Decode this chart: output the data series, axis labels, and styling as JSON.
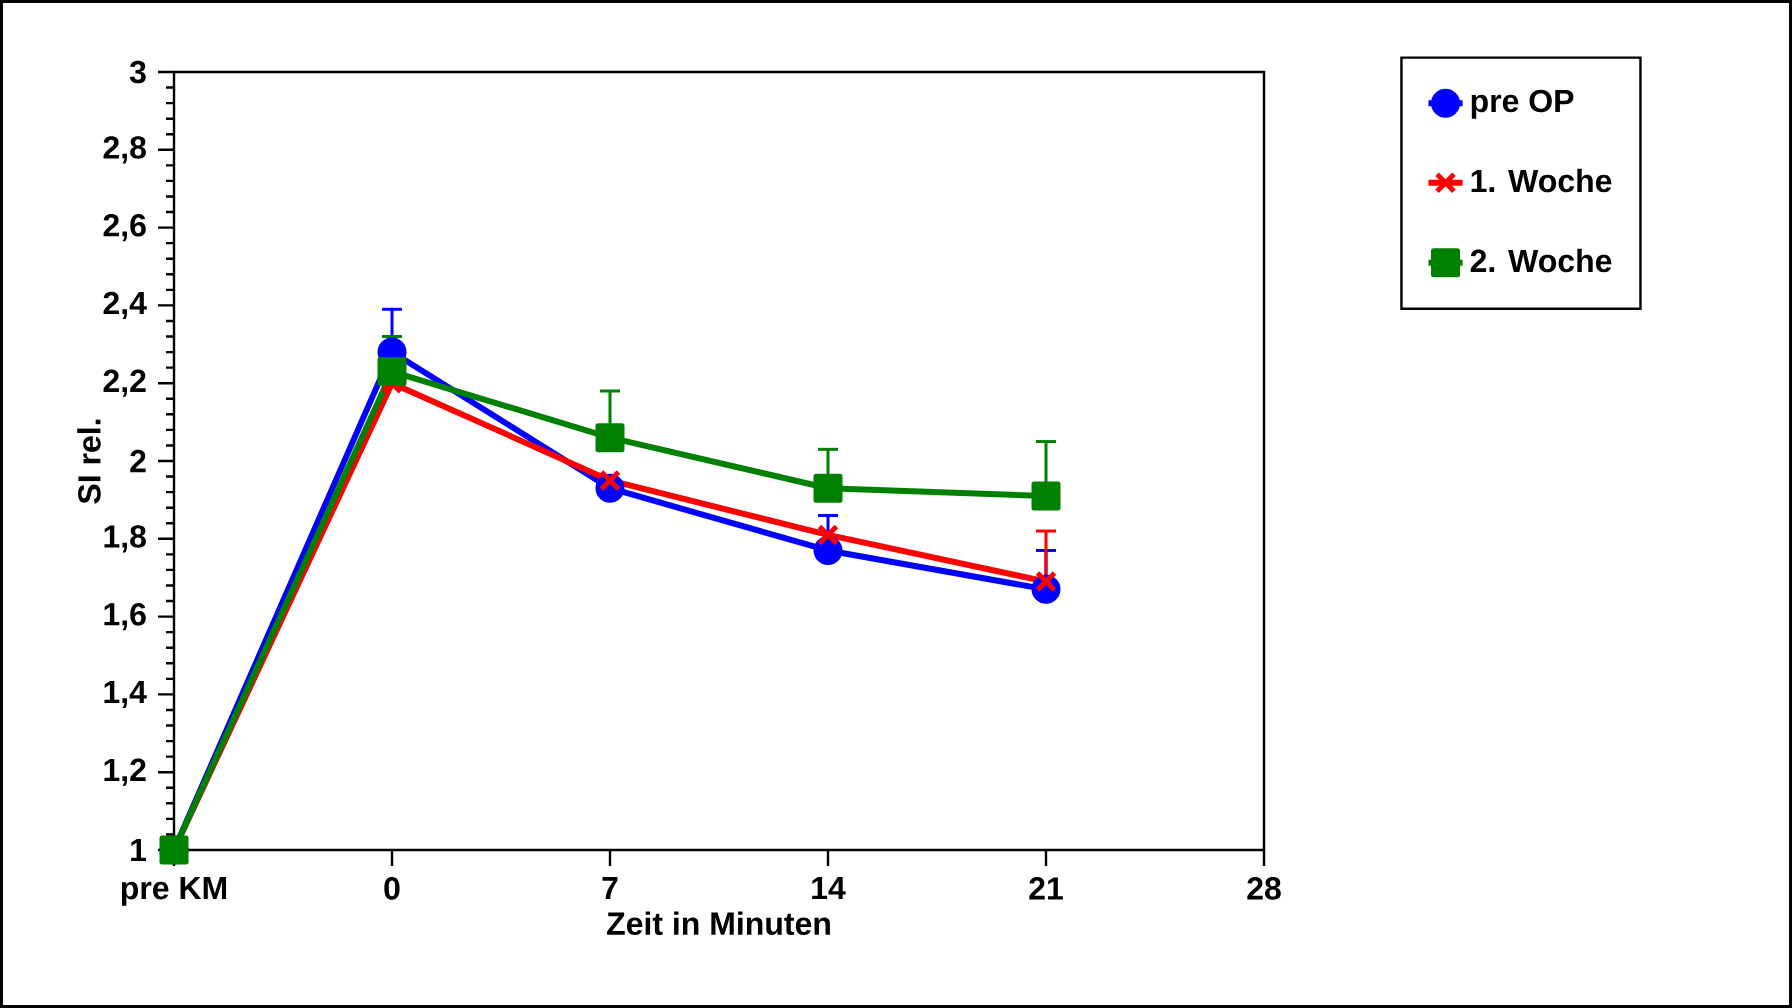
{
  "chart_data": {
    "type": "line",
    "xlabel": "Zeit in Minuten",
    "ylabel": "SI rel.",
    "x": [
      -7,
      0,
      7,
      14,
      21
    ],
    "xlim": [
      -7,
      28
    ],
    "xticks": [
      {
        "value": -7,
        "label": "pre KM"
      },
      0,
      7,
      14,
      21,
      28
    ],
    "ylim": [
      1,
      3
    ],
    "yticks": [
      1,
      {
        "value": 1.2,
        "label": "1,2"
      },
      {
        "value": 1.4,
        "label": "1,4"
      },
      {
        "value": 1.6,
        "label": "1,6"
      },
      {
        "value": 1.8,
        "label": "1,8"
      },
      2,
      {
        "value": 2.2,
        "label": "2,2"
      },
      {
        "value": 2.4,
        "label": "2,4"
      },
      {
        "value": 2.6,
        "label": "2,6"
      },
      {
        "value": 2.8,
        "label": "2,8"
      },
      3
    ],
    "grid": false,
    "legend": "top right",
    "line_style": "solid",
    "series": [
      {
        "name": "pre OP",
        "color": "#0000ff",
        "marker": "circle",
        "values": [
          1.0,
          2.28,
          1.93,
          1.77,
          1.67
        ],
        "errors": [
          null,
          0.11,
          null,
          0.09,
          0.1
        ]
      },
      {
        "name": "1. Woche",
        "color": "#ff0000",
        "marker": "cross",
        "values": [
          1.0,
          2.2,
          1.95,
          1.81,
          1.69
        ],
        "errors": [
          null,
          null,
          null,
          null,
          0.13
        ]
      },
      {
        "name": "2. Woche",
        "color": "#008000",
        "marker": "square",
        "values": [
          1.0,
          2.23,
          2.06,
          1.93,
          1.91
        ],
        "errors": [
          null,
          0.09,
          0.12,
          0.1,
          0.14
        ]
      }
    ]
  }
}
